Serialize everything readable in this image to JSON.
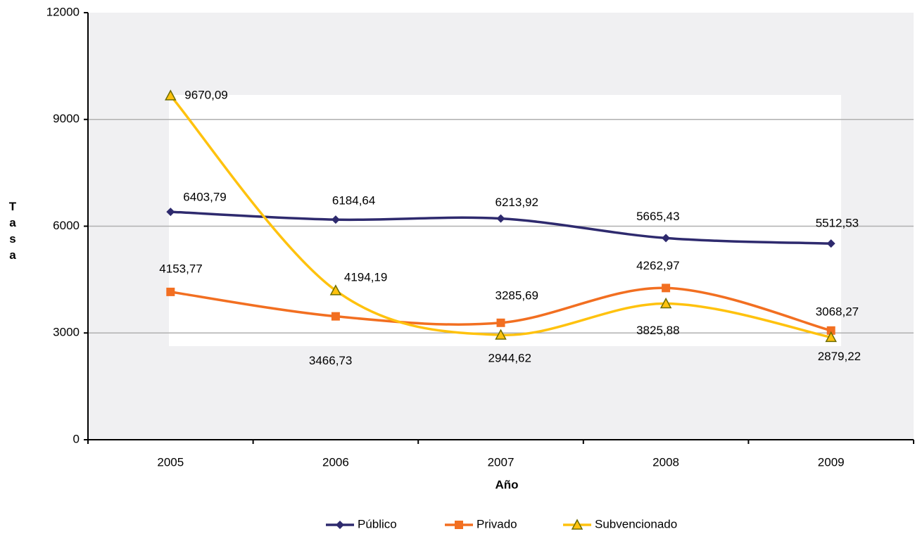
{
  "chart_data": {
    "type": "line",
    "x_label": "Año",
    "y_label": "Tasa",
    "categories": [
      "2005",
      "2006",
      "2007",
      "2008",
      "2009"
    ],
    "series": [
      {
        "name": "Público",
        "color": "#2e2a6e",
        "marker": "diamond",
        "values": [
          6403.79,
          6184.64,
          6213.92,
          5665.43,
          5512.53
        ],
        "value_labels": [
          "6403,79",
          "6184,64",
          "6213,92",
          "5665,43",
          "5512,53"
        ]
      },
      {
        "name": "Privado",
        "color": "#f26f21",
        "marker": "square",
        "values": [
          4153.77,
          3466.73,
          3285.69,
          4262.97,
          3068.27
        ],
        "value_labels": [
          "4153,77",
          "3466,73",
          "3285,69",
          "4262,97",
          "3068,27"
        ]
      },
      {
        "name": "Subvencionado",
        "color": "#ffc20e",
        "marker": "triangle",
        "values": [
          9670.09,
          4194.19,
          2944.62,
          3825.88,
          2879.22
        ],
        "value_labels": [
          "9670,09",
          "4194,19",
          "2944,62",
          "3825,88",
          "2879,22"
        ]
      }
    ],
    "ylim": [
      0,
      12000
    ],
    "yticks": [
      0,
      3000,
      6000,
      9000,
      12000
    ],
    "grid": true,
    "legend": "bottom"
  }
}
